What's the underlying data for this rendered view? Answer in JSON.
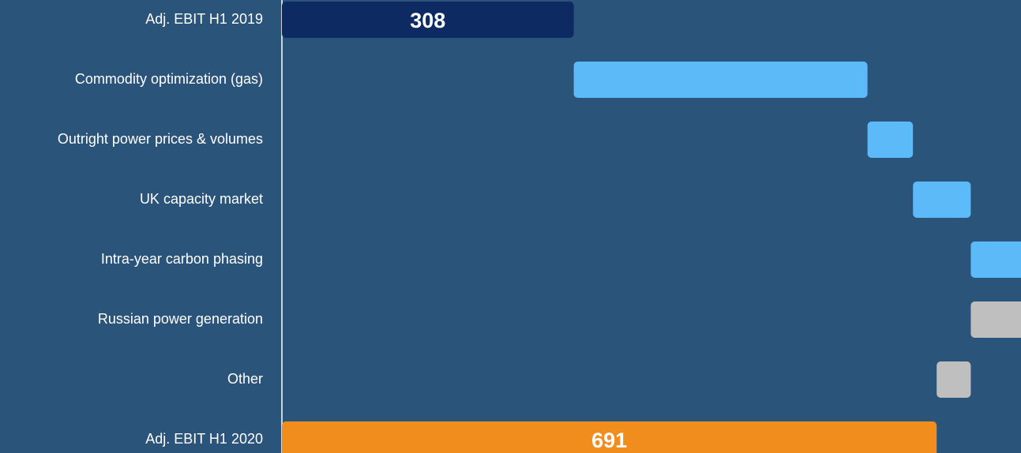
{
  "chart_data": {
    "type": "waterfall",
    "categories": [
      "Adj. EBIT H1 2019",
      "Commodity optimization (gas)",
      "Outright power prices & volumes",
      "UK capacity market",
      "Intra-year carbon phasing",
      "Russian power generation",
      "Other",
      "Adj. EBIT H1 2020"
    ],
    "values": [
      308,
      310,
      48,
      61,
      60,
      -60,
      -36,
      691
    ],
    "is_total": [
      true,
      false,
      false,
      false,
      false,
      false,
      false,
      true
    ],
    "colors": [
      "#0d2a63",
      "#5bbaf7",
      "#5bbaf7",
      "#5bbaf7",
      "#5bbaf7",
      "#bfbfbf",
      "#bfbfbf",
      "#f08d1d"
    ],
    "xlim": [
      0,
      780
    ]
  }
}
